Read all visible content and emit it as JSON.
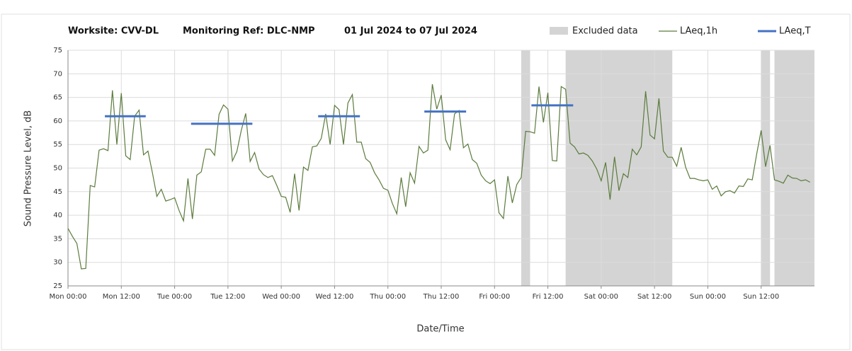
{
  "chart_data": {
    "type": "line",
    "header": [
      "Worksite: CVV-DL",
      "Monitoring Ref: DLC-NMP",
      "01 Jul 2024 to 07 Jul 2024"
    ],
    "ylabel": "Sound Pressure Level, dB",
    "xlabel": "Date/Time",
    "xlim": [
      0,
      168
    ],
    "ylim": [
      25,
      75
    ],
    "yticks": [
      25,
      30,
      35,
      40,
      45,
      50,
      55,
      60,
      65,
      70,
      75
    ],
    "xticks": [
      {
        "value": 0,
        "label": "Mon 00:00"
      },
      {
        "value": 12,
        "label": "Mon 12:00"
      },
      {
        "value": 24,
        "label": "Tue 00:00"
      },
      {
        "value": 36,
        "label": "Tue 12:00"
      },
      {
        "value": 48,
        "label": "Wed 00:00"
      },
      {
        "value": 60,
        "label": "Wed 12:00"
      },
      {
        "value": 72,
        "label": "Thu 00:00"
      },
      {
        "value": 84,
        "label": "Thu 12:00"
      },
      {
        "value": 96,
        "label": "Fri 00:00"
      },
      {
        "value": 108,
        "label": "Fri 12:00"
      },
      {
        "value": 120,
        "label": "Sat 00:00"
      },
      {
        "value": 132,
        "label": "Sat 12:00"
      },
      {
        "value": 144,
        "label": "Sun 00:00"
      },
      {
        "value": 156,
        "label": "Sun 12:00"
      }
    ],
    "grid": true,
    "excluded": {
      "name": "Excluded data",
      "color": "#d4d4d4",
      "ranges": [
        [
          102,
          104
        ],
        [
          112,
          136
        ],
        [
          156,
          158
        ],
        [
          159,
          168
        ]
      ]
    },
    "series": [
      {
        "name": "LAeq,1h",
        "color": "#5b7b3c",
        "values": [
          37.2,
          35.5,
          34,
          28.6,
          28.7,
          46.3,
          46,
          53.8,
          54.1,
          53.7,
          66.5,
          55,
          65.9,
          52.6,
          51.8,
          61,
          62.3,
          52.8,
          53.6,
          49,
          44,
          45.5,
          43,
          43.3,
          43.7,
          41,
          38.8,
          47.8,
          39.2,
          48.5,
          49.2,
          54,
          54,
          52.7,
          61.4,
          63.4,
          62.5,
          51.5,
          53.5,
          58,
          61.6,
          51.4,
          53.3,
          49.8,
          48.6,
          48,
          48.4,
          46.3,
          44,
          43.8,
          40.6,
          48.8,
          41,
          50.2,
          49.5,
          54.5,
          54.7,
          56.3,
          61.5,
          55,
          63.3,
          62.4,
          55,
          63.8,
          65.6,
          55.5,
          55.5,
          52,
          51.2,
          49,
          47.5,
          45.7,
          45.3,
          42.5,
          40.3,
          48,
          41.8,
          49,
          46.8,
          54.6,
          53.2,
          53.8,
          67.8,
          62.5,
          65.5,
          56,
          53.9,
          61.5,
          62.2,
          54.3,
          55.1,
          51.8,
          51,
          48.5,
          47.3,
          46.7,
          47.5,
          40.5,
          39.3,
          48.3,
          42.6,
          46.5,
          48,
          57.8,
          57.7,
          57.4,
          67.3,
          59.7,
          66,
          51.6,
          51.5,
          67.3,
          66.7,
          55.3,
          54.5,
          53,
          53.2,
          52.7,
          51.5,
          49.8,
          47.3,
          51.2,
          43.3,
          52.4,
          45.2,
          48.8,
          48,
          54,
          52.8,
          54.5,
          66.3,
          57,
          56.2,
          64.8,
          53.6,
          52.3,
          52.3,
          50.4,
          54.4,
          50.2,
          47.8,
          47.8,
          47.5,
          47.3,
          47.5,
          45.5,
          46.2,
          44.1,
          45,
          45.2,
          44.7,
          46.2,
          46.1,
          47.7,
          47.5,
          53,
          58,
          50.3,
          54.8,
          47.5,
          47.2,
          46.8,
          48.5,
          47.9,
          47.8,
          47.3,
          47.5,
          47
        ]
      },
      {
        "name": "LAeq,T",
        "color": "#4472c4",
        "values": [
          61,
          59.4,
          61,
          62,
          63.3
        ],
        "x_ranges": [
          [
            8.3,
            17.5
          ],
          [
            27.7,
            41.5
          ],
          [
            56.3,
            65.7
          ],
          [
            80.2,
            89.6
          ],
          [
            104.3,
            113.7
          ]
        ]
      }
    ]
  }
}
